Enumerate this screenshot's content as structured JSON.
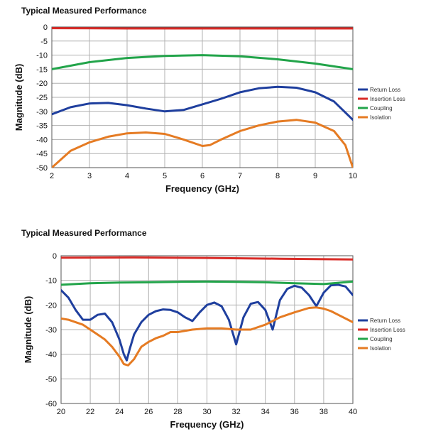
{
  "chart_data": [
    {
      "type": "line",
      "title": "Typical Measured Performance",
      "xlabel": "Frequency  (GHz)",
      "ylabel": "Magnitude (dB)",
      "xlim": [
        2,
        10
      ],
      "ylim": [
        -50,
        0
      ],
      "xticks": [
        2,
        3,
        4,
        5,
        6,
        7,
        8,
        9,
        10
      ],
      "yticks": [
        0,
        -5,
        -10,
        -15,
        -20,
        -25,
        -30,
        -35,
        -40,
        -45,
        -50
      ],
      "grid": true,
      "legend_position": "right",
      "series": [
        {
          "name": "Return Loss",
          "color": "#1f3f9e",
          "x": [
            2,
            2.5,
            3,
            3.5,
            4,
            4.5,
            5,
            5.5,
            6,
            6.5,
            7,
            7.5,
            8,
            8.5,
            9,
            9.5,
            10
          ],
          "y": [
            -31,
            -28.5,
            -27.2,
            -27,
            -27.8,
            -29,
            -30,
            -29.5,
            -27.5,
            -25.5,
            -23.2,
            -21.8,
            -21.3,
            -21.6,
            -23.2,
            -26.5,
            -33
          ]
        },
        {
          "name": "Insertion Loss",
          "color": "#d92b27",
          "x": [
            2,
            4,
            6,
            8,
            10
          ],
          "y": [
            -0.4,
            -0.5,
            -0.5,
            -0.5,
            -0.5
          ]
        },
        {
          "name": "Coupling",
          "color": "#22a44a",
          "x": [
            2,
            3,
            4,
            5,
            6,
            7,
            8,
            9,
            10
          ],
          "y": [
            -15,
            -12.5,
            -11,
            -10.3,
            -10,
            -10.4,
            -11.5,
            -13,
            -15
          ]
        },
        {
          "name": "Isolation",
          "color": "#e57b23",
          "x": [
            2,
            2.5,
            3,
            3.5,
            4,
            4.5,
            5,
            5.5,
            6,
            6.2,
            6.5,
            7,
            7.5,
            8,
            8.5,
            9,
            9.5,
            9.8,
            10
          ],
          "y": [
            -50,
            -44,
            -41,
            -39,
            -37.8,
            -37.5,
            -38,
            -40,
            -42.3,
            -42,
            -40,
            -37,
            -35,
            -33.6,
            -33,
            -34,
            -37,
            -42,
            -50
          ]
        }
      ]
    },
    {
      "type": "line",
      "title": "Typical Measured Performance",
      "xlabel": "Frequency  (GHz)",
      "ylabel": "Magnitude  (dB)",
      "xlim": [
        20,
        40
      ],
      "ylim": [
        -60,
        0
      ],
      "xticks": [
        20,
        22,
        24,
        26,
        28,
        30,
        32,
        34,
        36,
        38,
        40
      ],
      "yticks": [
        0,
        -10,
        -20,
        -30,
        -40,
        -50,
        -60
      ],
      "grid": true,
      "legend_position": "right",
      "series": [
        {
          "name": "Return Loss",
          "color": "#1f3f9e",
          "x": [
            20,
            20.5,
            21,
            21.5,
            22,
            22.5,
            23,
            23.5,
            24,
            24.3,
            24.5,
            24.7,
            25,
            25.5,
            26,
            26.5,
            27,
            27.5,
            28,
            28.5,
            29,
            29.5,
            30,
            30.5,
            31,
            31.5,
            32,
            32.5,
            33,
            33.5,
            34,
            34.5,
            35,
            35.5,
            36,
            36.5,
            37,
            37.5,
            38,
            38.5,
            39,
            39.5,
            40
          ],
          "y": [
            -14,
            -17,
            -22,
            -26,
            -26,
            -24,
            -23.5,
            -27,
            -34,
            -40,
            -42.5,
            -38,
            -32,
            -27,
            -24,
            -22.5,
            -21.8,
            -22,
            -23,
            -25,
            -26.5,
            -23,
            -20,
            -19,
            -20.5,
            -26,
            -36,
            -25,
            -19.5,
            -18.8,
            -22,
            -30,
            -18,
            -13.5,
            -12.2,
            -13,
            -16,
            -20.5,
            -15,
            -12,
            -11.8,
            -12.5,
            -16
          ]
        },
        {
          "name": "Insertion Loss",
          "color": "#d92b27",
          "x": [
            20,
            25,
            30,
            35,
            40
          ],
          "y": [
            -0.8,
            -0.7,
            -0.9,
            -1.2,
            -1.5
          ]
        },
        {
          "name": "Coupling",
          "color": "#22a44a",
          "x": [
            20,
            22,
            24,
            26,
            28,
            30,
            32,
            34,
            36,
            38,
            40
          ],
          "y": [
            -11.8,
            -11.2,
            -10.9,
            -10.8,
            -10.6,
            -10.5,
            -10.6,
            -10.8,
            -11.2,
            -11.5,
            -10.5
          ]
        },
        {
          "name": "Isolation",
          "color": "#e57b23",
          "x": [
            20,
            20.5,
            21,
            21.5,
            22,
            22.5,
            23,
            23.5,
            24,
            24.3,
            24.6,
            25,
            25.5,
            26,
            26.5,
            27,
            27.5,
            28,
            29,
            30,
            31,
            32,
            33,
            34,
            35,
            36,
            37,
            37.5,
            38,
            38.5,
            39,
            40
          ],
          "y": [
            -25.5,
            -26,
            -27,
            -28,
            -30,
            -32,
            -34,
            -37,
            -41,
            -44,
            -44.5,
            -42,
            -37,
            -35,
            -33.5,
            -32.5,
            -31,
            -31,
            -30,
            -29.5,
            -29.5,
            -30,
            -30,
            -28,
            -25,
            -23,
            -21.2,
            -21,
            -21.5,
            -22.5,
            -24,
            -27
          ]
        }
      ]
    }
  ]
}
